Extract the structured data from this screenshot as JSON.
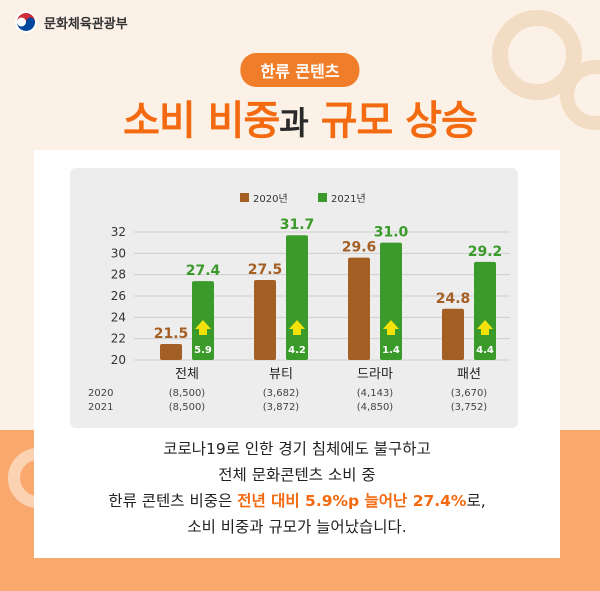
{
  "header": {
    "ministry": "문화체육관광부"
  },
  "badge": "한류 콘텐츠",
  "headline": {
    "part1": "소비 비중",
    "part2": "과",
    "part3": "규모 상승"
  },
  "chart_data": {
    "type": "bar",
    "categories": [
      "전체",
      "뷰티",
      "드라마",
      "패션"
    ],
    "series": [
      {
        "name": "2020년",
        "values": [
          21.5,
          27.5,
          29.6,
          24.8
        ],
        "color": "#a45f25"
      },
      {
        "name": "2021년",
        "values": [
          27.4,
          31.7,
          31.0,
          29.2
        ],
        "color": "#3a9a2a"
      }
    ],
    "increase_labels": [
      "5.9",
      "4.2",
      "1.4",
      "4.4"
    ],
    "ylim": [
      20,
      32
    ],
    "yticks": [
      20,
      22,
      24,
      26,
      28,
      30,
      32
    ],
    "legend_position": "top",
    "grid": true,
    "sample_rows": [
      {
        "label": "2020",
        "values": [
          "(8,500)",
          "(3,682)",
          "(4,143)",
          "(3,670)"
        ]
      },
      {
        "label": "2021",
        "values": [
          "(8,500)",
          "(3,872)",
          "(4,850)",
          "(3,752)"
        ]
      }
    ]
  },
  "body_text": {
    "line1": "코로나19로 인한 경기 침체에도 불구하고",
    "line2": "전체 문화콘텐츠 소비 중",
    "line3_pre": "한류 콘텐츠 비중은 ",
    "line3_highlight": "전년 대비 5.9%p 늘어난 27.4%",
    "line3_post": "로,",
    "line4": "소비 비중과 규모가 늘어났습니다."
  },
  "colors": {
    "accent": "#f36a10",
    "bar2020": "#a45f25",
    "bar2021": "#3a9a2a",
    "arrow": "#f5e10a"
  },
  "icons": {
    "logo": "taegeuk-logo-icon",
    "arrow": "up-arrow-icon"
  }
}
